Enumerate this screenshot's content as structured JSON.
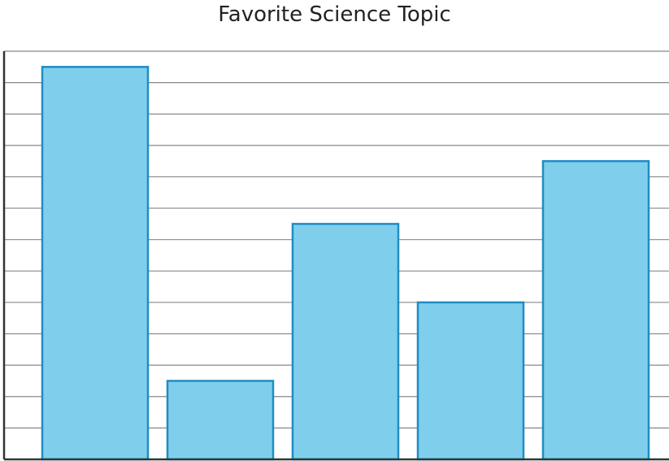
{
  "chart_data": {
    "type": "bar",
    "title": "Favorite Science Topic",
    "xlabel": "",
    "ylabel": "",
    "categories": [
      "",
      "",
      "",
      "",
      ""
    ],
    "values": [
      12.5,
      2.5,
      7.5,
      5,
      9.5
    ],
    "ylim": [
      0,
      13
    ],
    "gridlines": 13,
    "grid": true,
    "tick_labels_shown": false,
    "colors": {
      "bar_fill": "#7fcfec",
      "bar_stroke": "#1f8dc4",
      "grid": "#888888",
      "axis": "#333333",
      "title": "#222222"
    }
  }
}
